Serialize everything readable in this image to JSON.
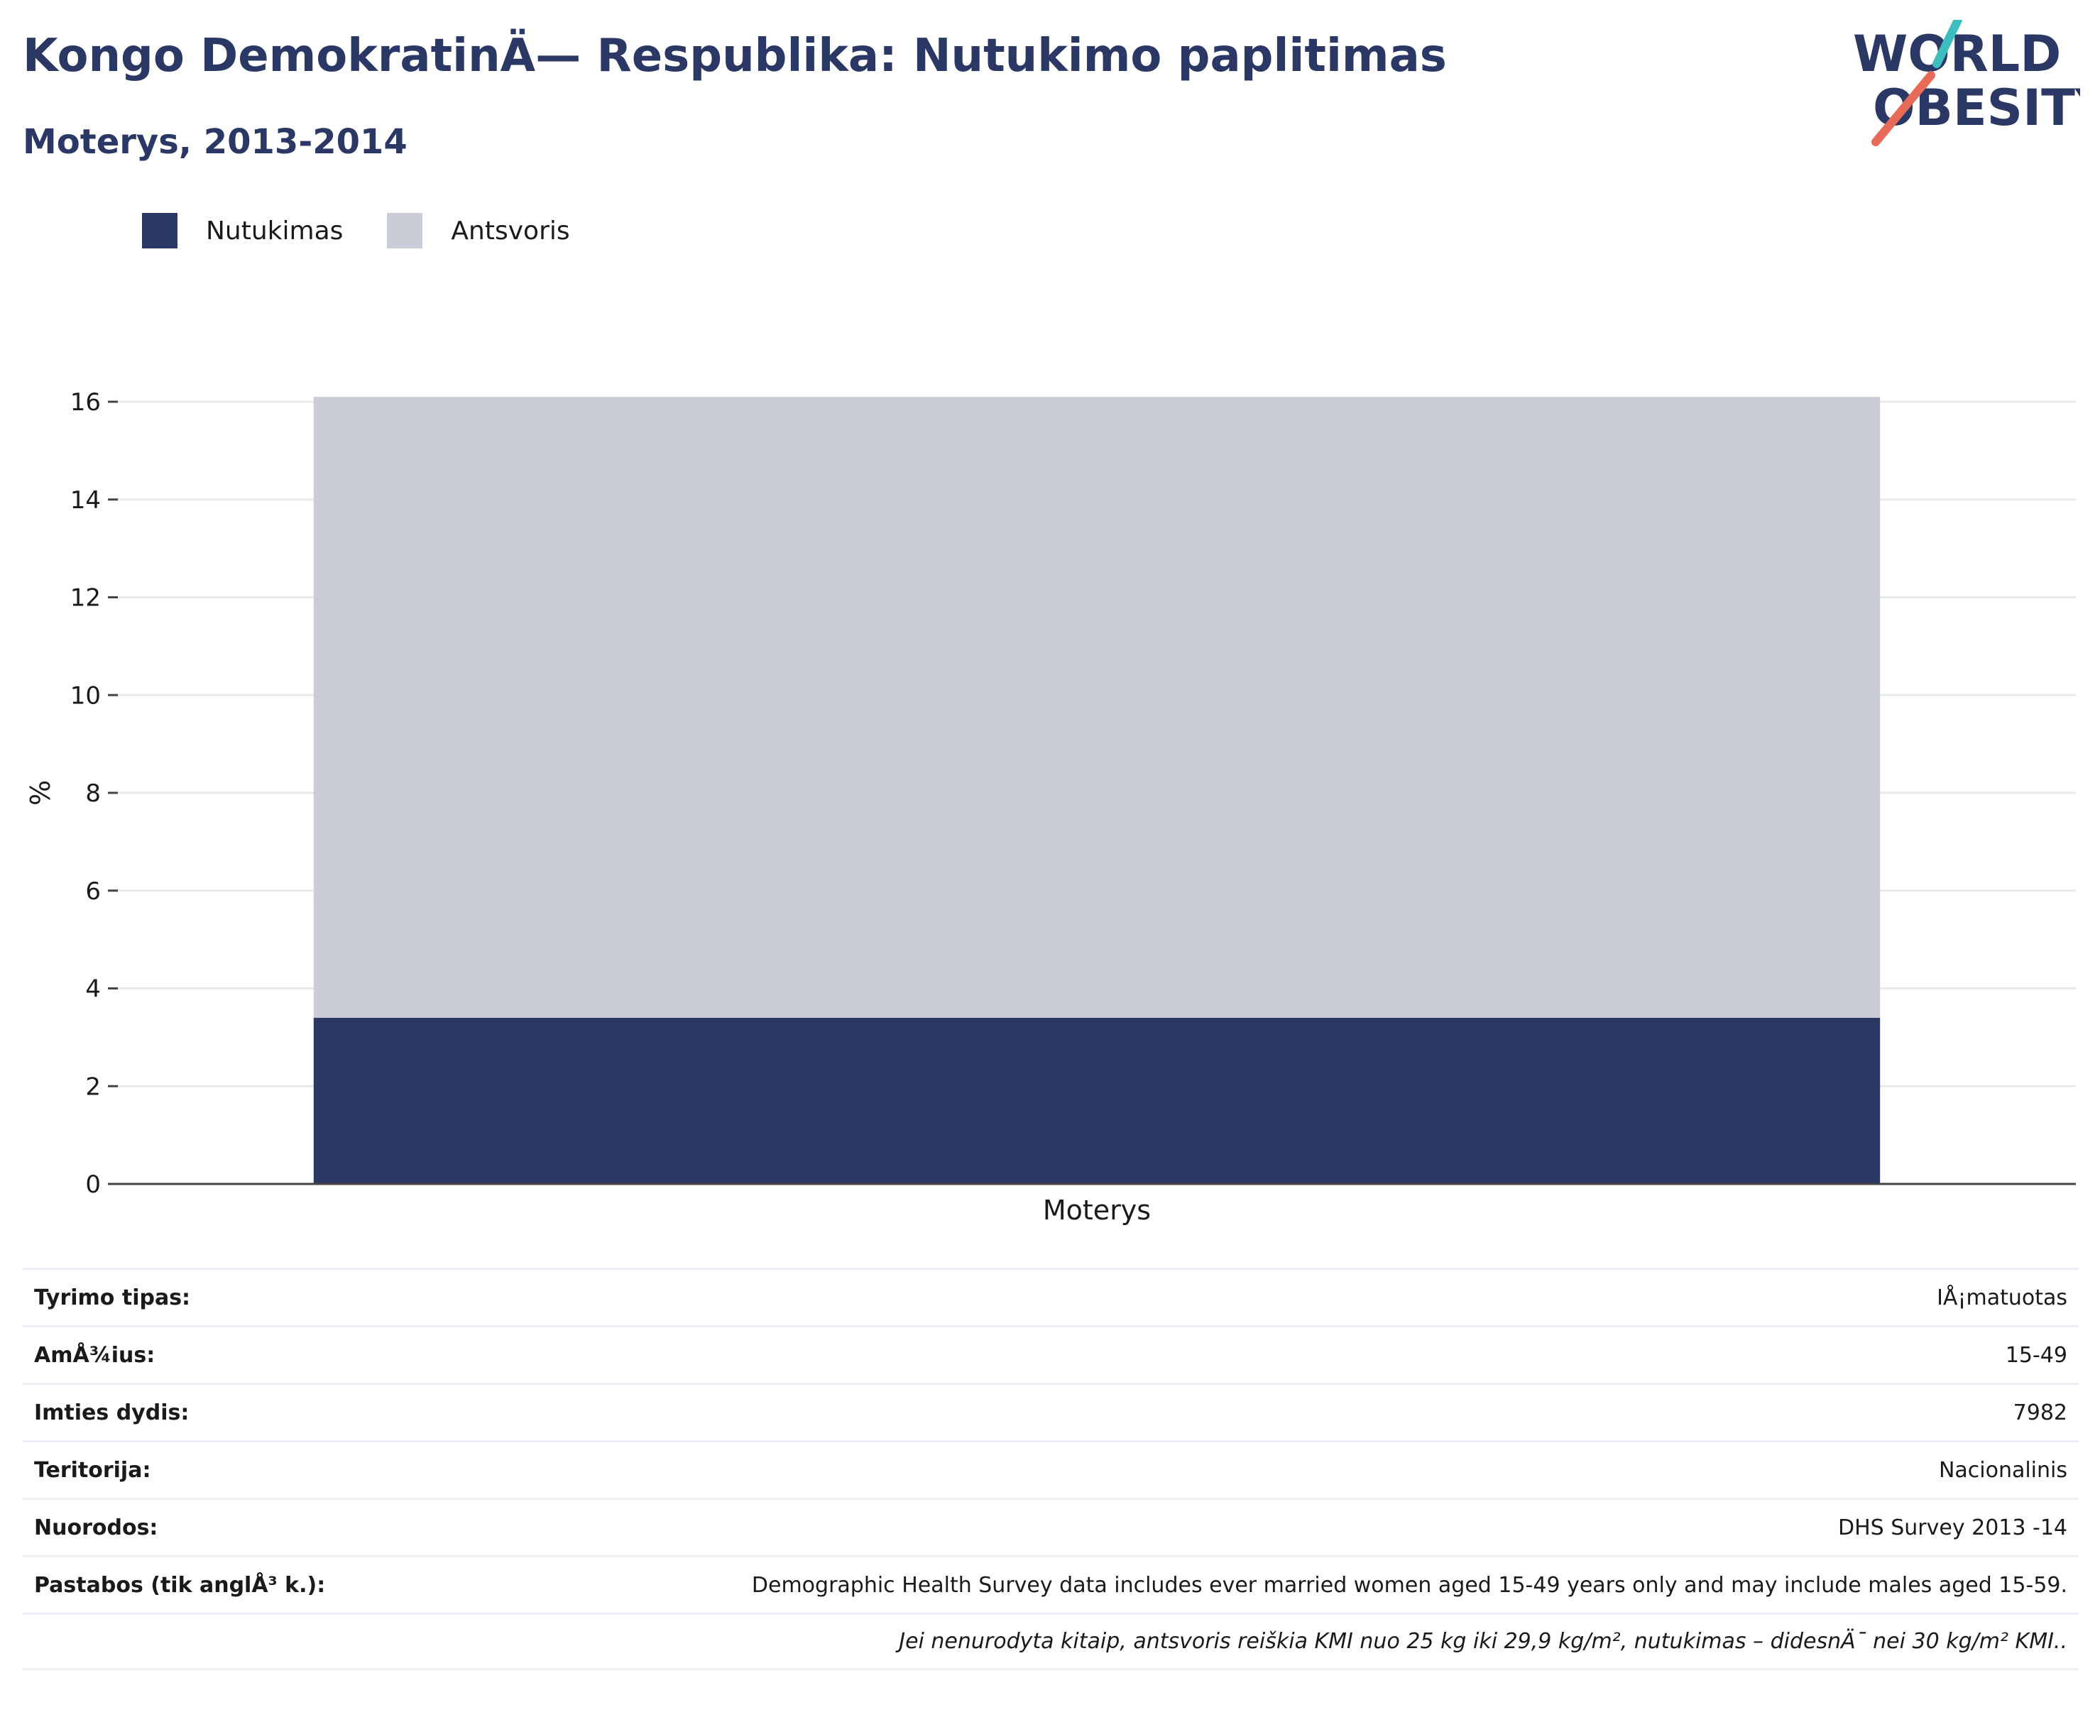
{
  "header": {
    "title": "Kongo DemokratinÄ— Respublika: Nutukimo paplitimas",
    "subtitle": "Moterys, 2013-2014"
  },
  "logo": {
    "line1": "WORLD",
    "line2": "OBESITY",
    "text_color": "#2b3764",
    "slash_colors": [
      "#3dbdbd",
      "#e86b5a"
    ]
  },
  "chart_data": {
    "type": "bar",
    "stacked": true,
    "categories": [
      "Moterys"
    ],
    "series": [
      {
        "name": "Nutukimas",
        "values": [
          3.4
        ],
        "color": "#2b3764"
      },
      {
        "name": "Antsvoris",
        "values": [
          12.7
        ],
        "color": "#cacdd8"
      }
    ],
    "ylabel": "%",
    "xlabel": "",
    "ylim": [
      0,
      16
    ],
    "yticks": [
      0,
      2,
      4,
      6,
      8,
      10,
      12,
      14,
      16
    ],
    "grid": true,
    "legend_position": "top-left"
  },
  "info_table": {
    "rows": [
      {
        "label": "Tyrimo tipas:",
        "value": "IÅ¡matuotas"
      },
      {
        "label": "AmÅ¾ius:",
        "value": "15-49"
      },
      {
        "label": "Imties dydis:",
        "value": "7982"
      },
      {
        "label": "Teritorija:",
        "value": "Nacionalinis"
      },
      {
        "label": "Nuorodos:",
        "value": "DHS Survey 2013 -14"
      },
      {
        "label": "Pastabos (tik anglÅ³ k.):",
        "value": "Demographic Health Survey data includes ever married women aged 15-49 years only and may include males aged 15-59."
      }
    ],
    "footnote": "Jei nenurodyta kitaip, antsvoris reiškia KMI nuo 25 kg iki 29,9 kg/m², nutukimas – didesnÄ¯ nei 30 kg/m² KMI.."
  }
}
